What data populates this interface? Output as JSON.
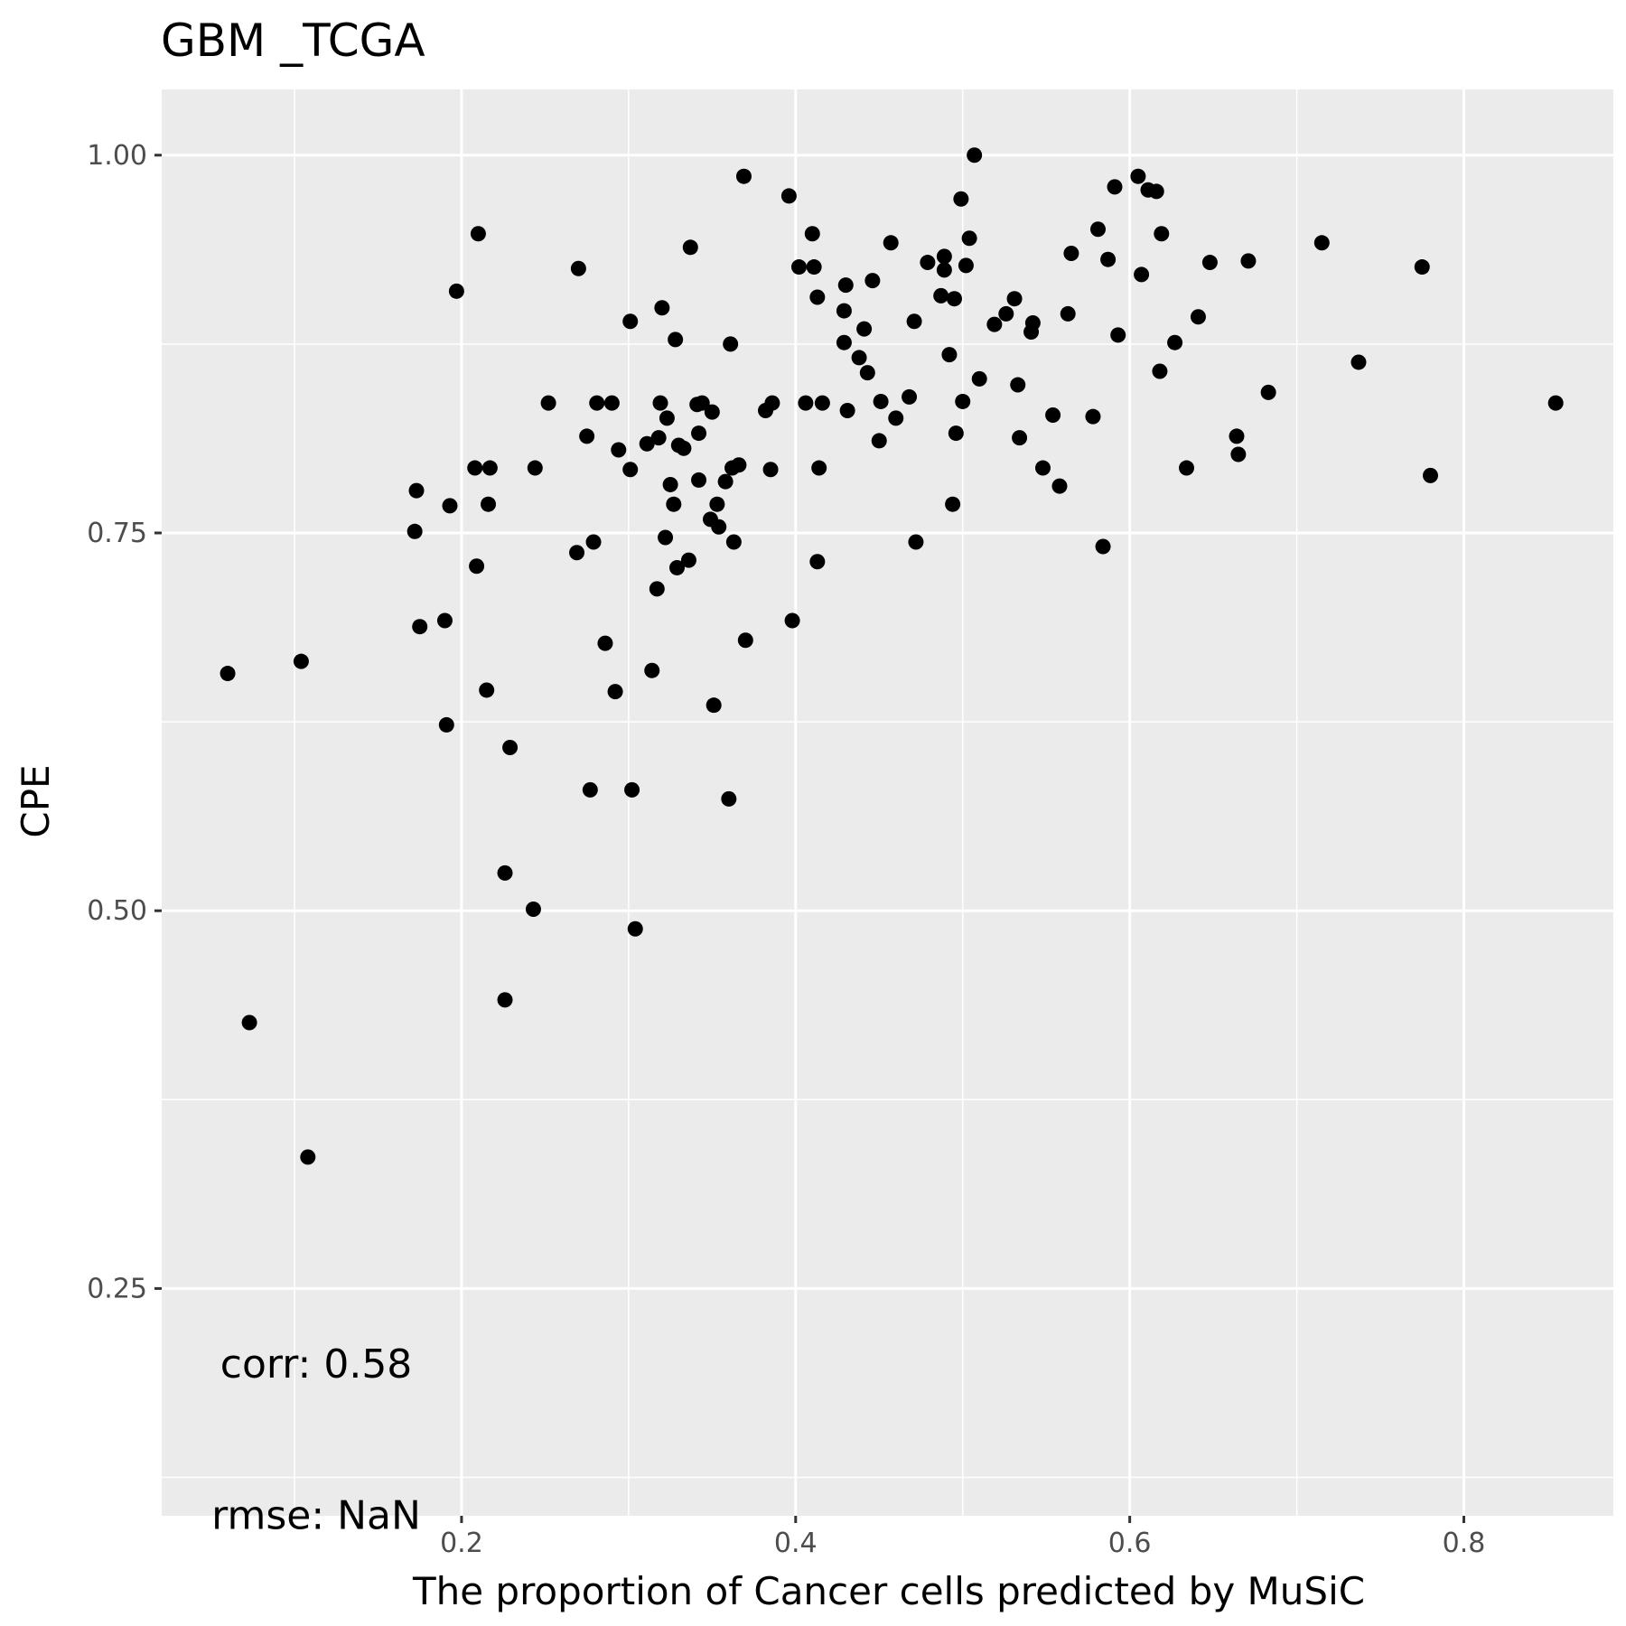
{
  "chart_data": {
    "type": "scatter",
    "title": "GBM _TCGA",
    "xlabel": "The proportion of Cancer cells predicted by MuSiC",
    "ylabel": "CPE",
    "xlim": [
      0.0205,
      0.8895
    ],
    "ylim": [
      0.0996,
      1.0435
    ],
    "x_ticks": [
      0.2,
      0.4,
      0.6,
      0.8
    ],
    "x_tick_labels": [
      "0.2",
      "0.4",
      "0.6",
      "0.8"
    ],
    "y_ticks": [
      0.25,
      0.5,
      0.75,
      1.0
    ],
    "y_tick_labels": [
      "0.25",
      "0.50",
      "0.75",
      "1.00"
    ],
    "grid": true,
    "background": "#ebebeb",
    "grid_color": "#ffffff",
    "point_color": "#000000",
    "annotations": [
      {
        "text": "corr: 0.58",
        "x": 0.113,
        "y": 0.2
      },
      {
        "text": "rmse: NaN",
        "x": 0.113,
        "y": 0.1
      }
    ],
    "points": [
      [
        0.06,
        0.657
      ],
      [
        0.073,
        0.426
      ],
      [
        0.104,
        0.665
      ],
      [
        0.108,
        0.337
      ],
      [
        0.172,
        0.751
      ],
      [
        0.173,
        0.778
      ],
      [
        0.175,
        0.688
      ],
      [
        0.19,
        0.692
      ],
      [
        0.191,
        0.623
      ],
      [
        0.193,
        0.768
      ],
      [
        0.197,
        0.91
      ],
      [
        0.208,
        0.793
      ],
      [
        0.209,
        0.728
      ],
      [
        0.21,
        0.948
      ],
      [
        0.215,
        0.646
      ],
      [
        0.216,
        0.769
      ],
      [
        0.217,
        0.793
      ],
      [
        0.226,
        0.525
      ],
      [
        0.226,
        0.441
      ],
      [
        0.229,
        0.608
      ],
      [
        0.243,
        0.501
      ],
      [
        0.244,
        0.793
      ],
      [
        0.252,
        0.836
      ],
      [
        0.269,
        0.737
      ],
      [
        0.27,
        0.925
      ],
      [
        0.275,
        0.814
      ],
      [
        0.277,
        0.58
      ],
      [
        0.279,
        0.744
      ],
      [
        0.281,
        0.836
      ],
      [
        0.286,
        0.677
      ],
      [
        0.29,
        0.836
      ],
      [
        0.292,
        0.645
      ],
      [
        0.294,
        0.805
      ],
      [
        0.301,
        0.792
      ],
      [
        0.301,
        0.89
      ],
      [
        0.302,
        0.58
      ],
      [
        0.304,
        0.488
      ],
      [
        0.311,
        0.809
      ],
      [
        0.314,
        0.659
      ],
      [
        0.317,
        0.713
      ],
      [
        0.318,
        0.813
      ],
      [
        0.319,
        0.836
      ],
      [
        0.32,
        0.899
      ],
      [
        0.322,
        0.747
      ],
      [
        0.323,
        0.826
      ],
      [
        0.325,
        0.782
      ],
      [
        0.327,
        0.769
      ],
      [
        0.328,
        0.878
      ],
      [
        0.329,
        0.727
      ],
      [
        0.33,
        0.808
      ],
      [
        0.333,
        0.806
      ],
      [
        0.336,
        0.732
      ],
      [
        0.337,
        0.939
      ],
      [
        0.341,
        0.835
      ],
      [
        0.342,
        0.816
      ],
      [
        0.342,
        0.785
      ],
      [
        0.344,
        0.836
      ],
      [
        0.349,
        0.759
      ],
      [
        0.35,
        0.83
      ],
      [
        0.351,
        0.636
      ],
      [
        0.353,
        0.769
      ],
      [
        0.354,
        0.754
      ],
      [
        0.358,
        0.784
      ],
      [
        0.36,
        0.574
      ],
      [
        0.361,
        0.875
      ],
      [
        0.362,
        0.793
      ],
      [
        0.363,
        0.744
      ],
      [
        0.366,
        0.795
      ],
      [
        0.369,
        0.986
      ],
      [
        0.37,
        0.679
      ],
      [
        0.382,
        0.831
      ],
      [
        0.385,
        0.792
      ],
      [
        0.386,
        0.836
      ],
      [
        0.396,
        0.973
      ],
      [
        0.398,
        0.692
      ],
      [
        0.402,
        0.926
      ],
      [
        0.406,
        0.836
      ],
      [
        0.41,
        0.948
      ],
      [
        0.411,
        0.926
      ],
      [
        0.413,
        0.906
      ],
      [
        0.413,
        0.731
      ],
      [
        0.414,
        0.793
      ],
      [
        0.416,
        0.836
      ],
      [
        0.429,
        0.897
      ],
      [
        0.429,
        0.876
      ],
      [
        0.43,
        0.914
      ],
      [
        0.431,
        0.831
      ],
      [
        0.438,
        0.866
      ],
      [
        0.441,
        0.885
      ],
      [
        0.443,
        0.856
      ],
      [
        0.446,
        0.917
      ],
      [
        0.45,
        0.811
      ],
      [
        0.451,
        0.837
      ],
      [
        0.457,
        0.942
      ],
      [
        0.46,
        0.826
      ],
      [
        0.468,
        0.84
      ],
      [
        0.471,
        0.89
      ],
      [
        0.472,
        0.744
      ],
      [
        0.479,
        0.929
      ],
      [
        0.487,
        0.907
      ],
      [
        0.489,
        0.933
      ],
      [
        0.489,
        0.924
      ],
      [
        0.492,
        0.868
      ],
      [
        0.494,
        0.769
      ],
      [
        0.495,
        0.905
      ],
      [
        0.496,
        0.816
      ],
      [
        0.499,
        0.971
      ],
      [
        0.5,
        0.837
      ],
      [
        0.502,
        0.927
      ],
      [
        0.504,
        0.945
      ],
      [
        0.507,
        1.0
      ],
      [
        0.51,
        0.852
      ],
      [
        0.519,
        0.888
      ],
      [
        0.526,
        0.895
      ],
      [
        0.531,
        0.905
      ],
      [
        0.533,
        0.848
      ],
      [
        0.534,
        0.813
      ],
      [
        0.541,
        0.883
      ],
      [
        0.542,
        0.889
      ],
      [
        0.548,
        0.793
      ],
      [
        0.554,
        0.828
      ],
      [
        0.558,
        0.781
      ],
      [
        0.563,
        0.895
      ],
      [
        0.565,
        0.935
      ],
      [
        0.578,
        0.827
      ],
      [
        0.581,
        0.951
      ],
      [
        0.584,
        0.741
      ],
      [
        0.587,
        0.931
      ],
      [
        0.591,
        0.979
      ],
      [
        0.593,
        0.881
      ],
      [
        0.605,
        0.986
      ],
      [
        0.607,
        0.921
      ],
      [
        0.611,
        0.977
      ],
      [
        0.616,
        0.976
      ],
      [
        0.618,
        0.857
      ],
      [
        0.619,
        0.948
      ],
      [
        0.627,
        0.876
      ],
      [
        0.634,
        0.793
      ],
      [
        0.641,
        0.893
      ],
      [
        0.648,
        0.929
      ],
      [
        0.664,
        0.814
      ],
      [
        0.665,
        0.802
      ],
      [
        0.671,
        0.93
      ],
      [
        0.683,
        0.843
      ],
      [
        0.715,
        0.942
      ],
      [
        0.737,
        0.863
      ],
      [
        0.775,
        0.926
      ],
      [
        0.78,
        0.788
      ],
      [
        0.855,
        0.836
      ]
    ]
  }
}
